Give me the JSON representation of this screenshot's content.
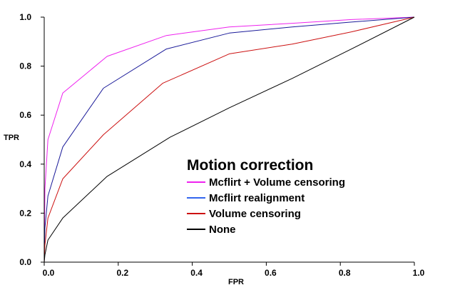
{
  "chart_data": {
    "type": "line",
    "title": "",
    "xlabel": "FPR",
    "ylabel": "TPR",
    "xlim": [
      0.0,
      1.0
    ],
    "ylim": [
      0.0,
      1.0
    ],
    "xticks": [
      "0.0",
      "0.2",
      "0.4",
      "0.6",
      "0.8",
      "1.0"
    ],
    "yticks": [
      "0.0",
      "0.2",
      "0.4",
      "0.6",
      "0.8",
      "1.0"
    ],
    "grid": false,
    "legend": {
      "title": "Motion correction",
      "placement": "center-right"
    },
    "series": [
      {
        "name": "Mcflirt + Volume censoring",
        "color": "#ee22ee",
        "x": [
          0.0,
          0.002,
          0.01,
          0.05,
          0.17,
          0.33,
          0.5,
          0.67,
          0.83,
          1.0
        ],
        "y": [
          0.0,
          0.3,
          0.5,
          0.69,
          0.84,
          0.925,
          0.96,
          0.975,
          0.99,
          1.0
        ]
      },
      {
        "name": "Mcflirt realignment",
        "color": "#1a1a99",
        "x": [
          0.0,
          0.002,
          0.01,
          0.05,
          0.16,
          0.33,
          0.5,
          0.67,
          0.83,
          1.0
        ],
        "y": [
          0.0,
          0.14,
          0.27,
          0.47,
          0.71,
          0.87,
          0.935,
          0.96,
          0.98,
          1.0
        ]
      },
      {
        "name": "Volume censoring",
        "color": "#cc1111",
        "x": [
          0.0,
          0.002,
          0.01,
          0.05,
          0.16,
          0.32,
          0.5,
          0.67,
          0.83,
          1.0
        ],
        "y": [
          0.0,
          0.07,
          0.18,
          0.34,
          0.52,
          0.73,
          0.85,
          0.89,
          0.94,
          1.0
        ]
      },
      {
        "name": "None",
        "color": "#000000",
        "x": [
          0.0,
          0.002,
          0.01,
          0.05,
          0.17,
          0.34,
          0.5,
          0.67,
          0.83,
          1.0
        ],
        "y": [
          0.0,
          0.03,
          0.09,
          0.18,
          0.35,
          0.51,
          0.63,
          0.75,
          0.87,
          1.0
        ]
      }
    ],
    "legend_swatch_colors": [
      "#ee22ee",
      "#3366ee",
      "#cc1111",
      "#000000"
    ],
    "axis_color": "#000000"
  }
}
